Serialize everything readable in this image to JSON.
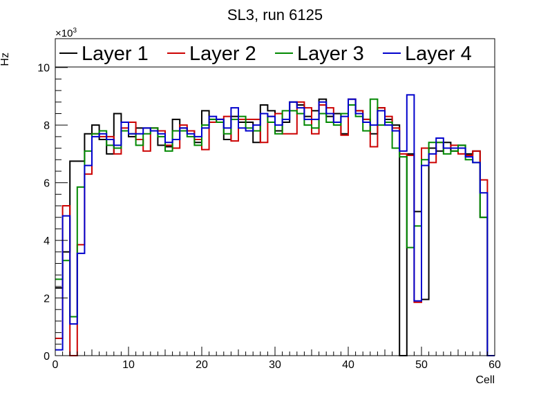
{
  "chart_data": {
    "type": "histogram-step",
    "title": "SL3, run 6125",
    "xlabel": "Cell",
    "ylabel": "Hz",
    "y_multiplier_label": "×10",
    "y_multiplier_exp": "3",
    "xlim": [
      0,
      60
    ],
    "ylim": [
      0,
      11000
    ],
    "x_ticks": [
      0,
      10,
      20,
      30,
      40,
      50,
      60
    ],
    "x_tick_labels": [
      "0",
      "10",
      "20",
      "30",
      "40",
      "50",
      "60"
    ],
    "y_ticks": [
      0,
      2000,
      4000,
      6000,
      8000,
      10000
    ],
    "y_tick_labels": [
      "0",
      "2",
      "4",
      "6",
      "8",
      "10"
    ],
    "bin_width": 1,
    "legend_position": "top (full width, inside frame)",
    "series": [
      {
        "name": "Layer 1",
        "color": "#000000",
        "values": [
          2350,
          3600,
          6750,
          6750,
          7700,
          8000,
          7500,
          7000,
          8400,
          8100,
          7600,
          7900,
          7900,
          7900,
          7300,
          7250,
          8200,
          7900,
          7800,
          7400,
          8500,
          8200,
          8200,
          7500,
          8300,
          8100,
          8100,
          7400,
          8700,
          8500,
          7800,
          8100,
          8800,
          8700,
          8300,
          8500,
          8900,
          8300,
          8400,
          7700,
          8900,
          8500,
          8200,
          7700,
          8600,
          8200,
          8000,
          0,
          7000,
          5000,
          1950,
          7200,
          7100,
          7400,
          7100,
          7300,
          7000,
          7100,
          4800,
          0
        ]
      },
      {
        "name": "Layer 2",
        "color": "#cc0000",
        "values": [
          600,
          5200,
          0,
          3850,
          6300,
          7700,
          7600,
          7600,
          7000,
          7900,
          8100,
          7500,
          7100,
          7900,
          7800,
          7300,
          7200,
          8000,
          7800,
          7500,
          7150,
          8100,
          8200,
          8300,
          7450,
          8200,
          8200,
          8200,
          7400,
          8300,
          8400,
          7700,
          7700,
          8800,
          8600,
          7700,
          8700,
          8600,
          8100,
          7650,
          8900,
          8500,
          8200,
          7250,
          8600,
          8300,
          7900,
          7000,
          6950,
          1850,
          7200,
          6700,
          7400,
          7200,
          7300,
          7000,
          6950,
          7100,
          6100,
          0
        ]
      },
      {
        "name": "Layer 3",
        "color": "#008800",
        "values": [
          2650,
          3300,
          1350,
          5850,
          7100,
          7700,
          7800,
          7300,
          7200,
          7800,
          7700,
          7300,
          7700,
          7900,
          7600,
          7100,
          7800,
          7800,
          7600,
          7300,
          8000,
          8200,
          8100,
          7700,
          8200,
          8300,
          7900,
          7800,
          8400,
          8100,
          7700,
          8500,
          8500,
          8400,
          8000,
          7900,
          8400,
          8100,
          8000,
          8400,
          8700,
          8300,
          7800,
          8900,
          8000,
          8100,
          7200,
          6900,
          3750,
          4500,
          6800,
          7400,
          7400,
          7000,
          7100,
          7300,
          6800,
          6700,
          4800,
          0
        ]
      },
      {
        "name": "Layer 4",
        "color": "#0000cc",
        "values": [
          200,
          4850,
          1100,
          3550,
          6600,
          7600,
          7700,
          7500,
          7300,
          8100,
          7700,
          7700,
          7900,
          7800,
          7700,
          7400,
          7500,
          7900,
          7700,
          7600,
          7900,
          8300,
          8200,
          7900,
          8600,
          7900,
          7800,
          8000,
          8400,
          8300,
          8000,
          8200,
          8800,
          8600,
          8200,
          8200,
          8800,
          8400,
          8100,
          8300,
          8900,
          8400,
          8100,
          8000,
          8500,
          8000,
          7800,
          7100,
          9050,
          1900,
          6600,
          7000,
          7550,
          7200,
          7200,
          7200,
          6900,
          6700,
          5650,
          0
        ]
      }
    ]
  }
}
